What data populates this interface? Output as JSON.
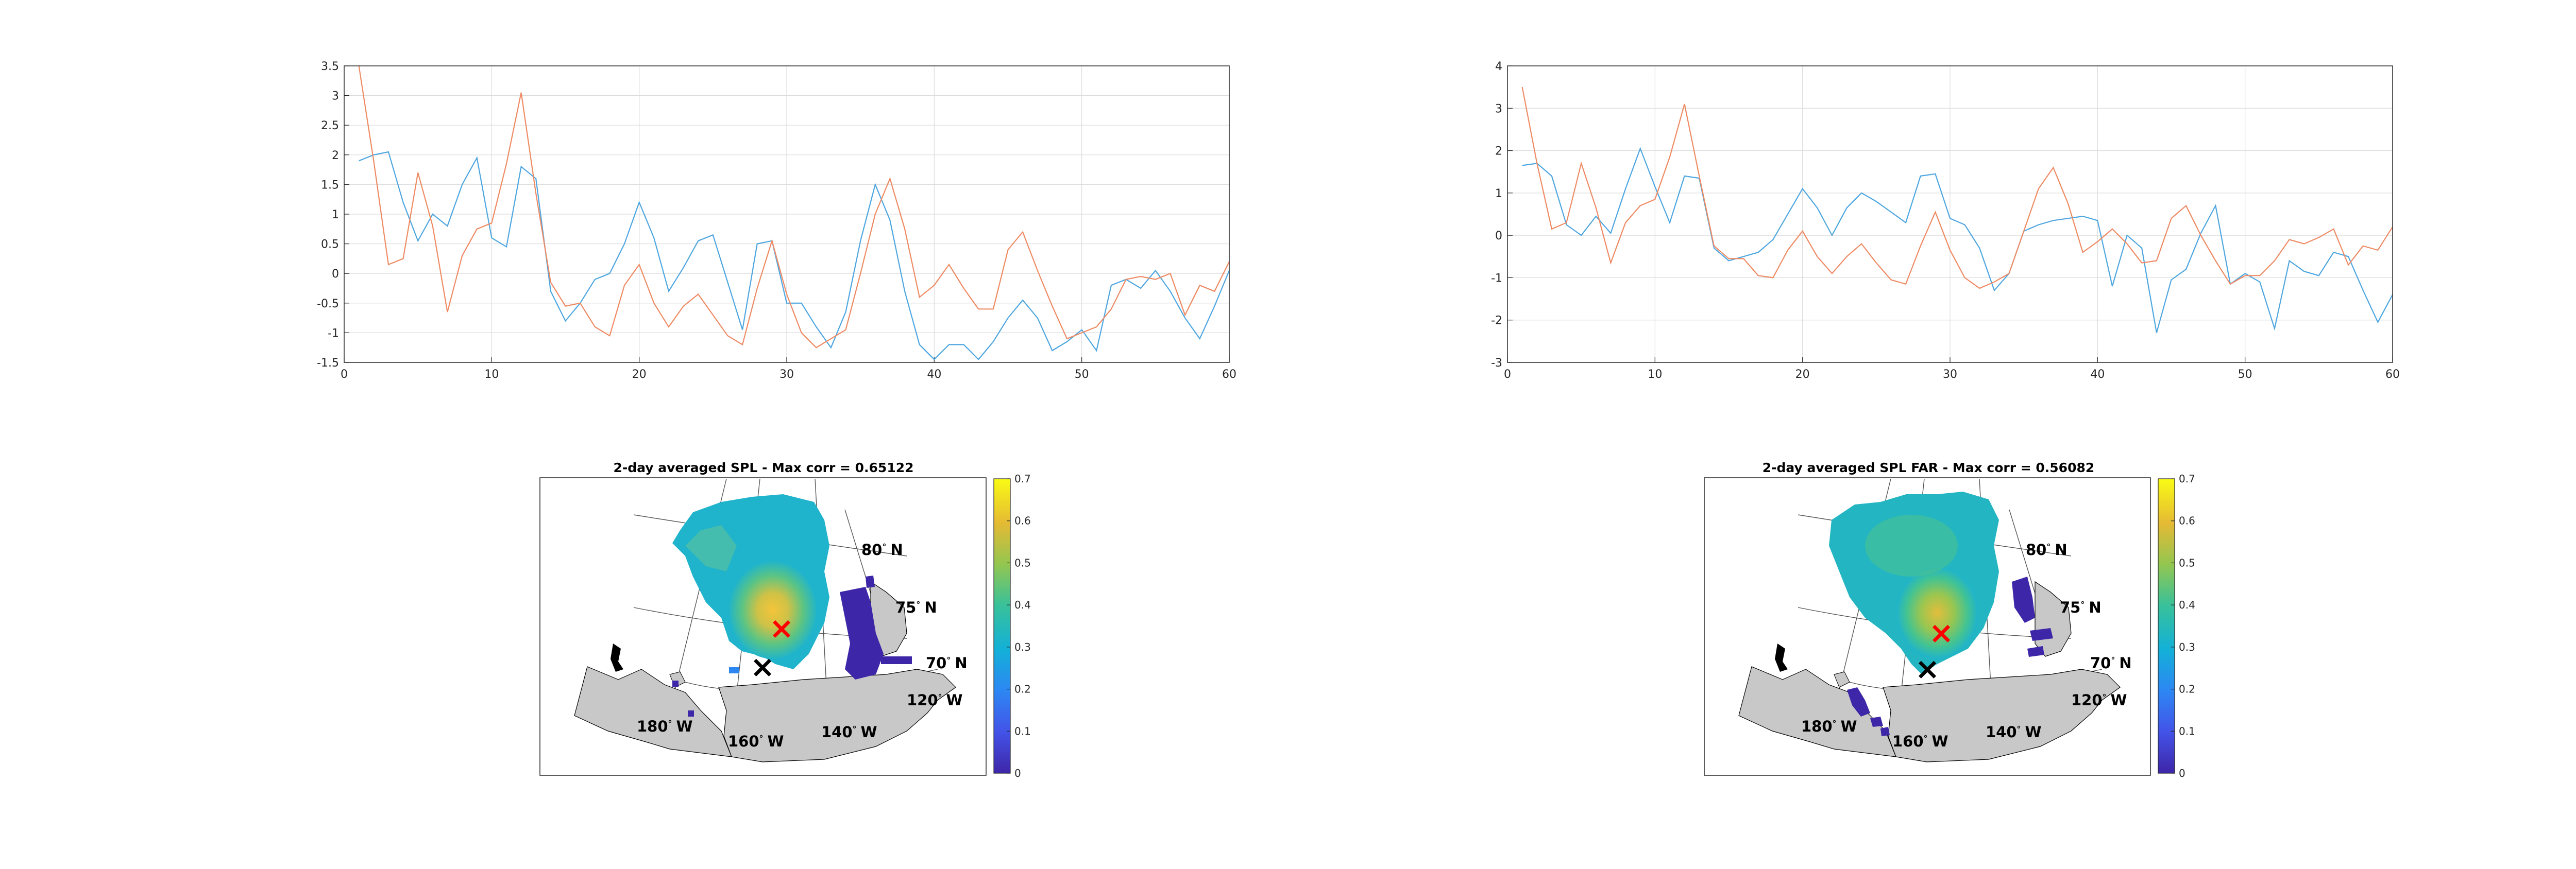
{
  "chart_data": [
    {
      "type": "line",
      "xlim": [
        0,
        60
      ],
      "ylim": [
        -1.5,
        3.5
      ],
      "xticks": [
        "0",
        "10",
        "20",
        "30",
        "40",
        "50",
        "60"
      ],
      "yticks": [
        "-1.5",
        "-1",
        "-0.5",
        "0",
        "0.5",
        "1",
        "1.5",
        "2",
        "2.5",
        "3",
        "3.5"
      ],
      "grid": true,
      "series": [
        {
          "color": "#0072BD",
          "x": [
            1,
            2,
            3,
            4,
            5,
            6,
            7,
            8,
            9,
            10,
            11,
            12,
            13,
            14,
            15,
            16,
            17,
            18,
            19,
            20,
            21,
            22,
            23,
            24,
            25,
            26,
            27,
            28,
            29,
            30,
            31,
            32,
            33,
            34,
            35,
            36,
            37,
            38,
            39,
            40,
            41,
            42,
            43,
            44,
            45,
            46,
            47,
            48,
            49,
            50,
            51,
            52,
            53,
            54,
            55,
            56,
            57,
            58,
            59,
            60
          ],
          "values": [
            1.9,
            2.0,
            2.05,
            1.2,
            0.55,
            1.0,
            0.8,
            1.5,
            1.95,
            0.6,
            0.45,
            1.8,
            1.6,
            -0.3,
            -0.8,
            -0.5,
            -0.1,
            0.0,
            0.5,
            1.2,
            0.6,
            -0.3,
            0.1,
            0.55,
            0.65,
            -0.15,
            -0.95,
            0.5,
            0.55,
            -0.5,
            -0.5,
            -0.9,
            -1.25,
            -0.65,
            0.55,
            1.5,
            0.9,
            -0.3,
            -1.2,
            -1.45,
            -1.2,
            -1.2,
            -1.45,
            -1.15,
            -0.75,
            -0.45,
            -0.75,
            -1.3,
            -1.15,
            -0.95,
            -1.3,
            -0.2,
            -0.1,
            -0.25,
            0.05,
            -0.3,
            -0.75,
            -1.1,
            -0.55,
            0.05
          ]
        },
        {
          "color": "#D95319",
          "x": [
            1,
            2,
            3,
            4,
            5,
            6,
            7,
            8,
            9,
            10,
            11,
            12,
            13,
            14,
            15,
            16,
            17,
            18,
            19,
            20,
            21,
            22,
            23,
            24,
            25,
            26,
            27,
            28,
            29,
            30,
            31,
            32,
            33,
            34,
            35,
            36,
            37,
            38,
            39,
            40,
            41,
            42,
            43,
            44,
            45,
            46,
            47,
            48,
            49,
            50,
            51,
            52,
            53,
            54,
            55,
            56,
            57,
            58,
            59,
            60
          ],
          "values": [
            3.5,
            1.9,
            0.15,
            0.25,
            1.7,
            0.8,
            -0.65,
            0.3,
            0.75,
            0.85,
            1.85,
            3.05,
            1.35,
            -0.15,
            -0.55,
            -0.5,
            -0.9,
            -1.05,
            -0.2,
            0.15,
            -0.5,
            -0.9,
            -0.55,
            -0.35,
            -0.7,
            -1.05,
            -1.2,
            -0.25,
            0.55,
            -0.35,
            -1.0,
            -1.25,
            -1.1,
            -0.95,
            0.0,
            1.0,
            1.6,
            0.75,
            -0.4,
            -0.2,
            0.15,
            -0.25,
            -0.6,
            -0.6,
            0.4,
            0.7,
            0.05,
            -0.55,
            -1.1,
            -1.0,
            -0.9,
            -0.6,
            -0.1,
            -0.05,
            -0.1,
            0.0,
            -0.7,
            -0.2,
            -0.3,
            0.2
          ]
        }
      ]
    },
    {
      "type": "line",
      "xlim": [
        0,
        60
      ],
      "ylim": [
        -3,
        4
      ],
      "xticks": [
        "0",
        "10",
        "20",
        "30",
        "40",
        "50",
        "60"
      ],
      "yticks": [
        "-3",
        "-2",
        "-1",
        "0",
        "1",
        "2",
        "3",
        "4"
      ],
      "grid": true,
      "series": [
        {
          "color": "#0072BD",
          "x": [
            1,
            2,
            3,
            4,
            5,
            6,
            7,
            8,
            9,
            10,
            11,
            12,
            13,
            14,
            15,
            16,
            17,
            18,
            19,
            20,
            21,
            22,
            23,
            24,
            25,
            26,
            27,
            28,
            29,
            30,
            31,
            32,
            33,
            34,
            35,
            36,
            37,
            38,
            39,
            40,
            41,
            42,
            43,
            44,
            45,
            46,
            47,
            48,
            49,
            50,
            51,
            52,
            53,
            54,
            55,
            56,
            57,
            58,
            59,
            60
          ],
          "values": [
            1.65,
            1.7,
            1.4,
            0.25,
            0.0,
            0.45,
            0.05,
            1.1,
            2.05,
            1.15,
            0.3,
            1.4,
            1.35,
            -0.3,
            -0.6,
            -0.5,
            -0.4,
            -0.1,
            0.5,
            1.1,
            0.65,
            0.0,
            0.65,
            1.0,
            0.8,
            0.55,
            0.3,
            1.4,
            1.45,
            0.4,
            0.25,
            -0.3,
            -1.3,
            -0.9,
            0.1,
            0.25,
            0.35,
            0.4,
            0.45,
            0.35,
            -1.2,
            0.0,
            -0.3,
            -2.3,
            -1.05,
            -0.8,
            0.05,
            0.7,
            -1.15,
            -0.9,
            -1.1,
            -2.2,
            -0.6,
            -0.85,
            -0.95,
            -0.4,
            -0.5,
            -1.3,
            -2.05,
            -1.4
          ]
        },
        {
          "color": "#D95319",
          "x": [
            1,
            2,
            3,
            4,
            5,
            6,
            7,
            8,
            9,
            10,
            11,
            12,
            13,
            14,
            15,
            16,
            17,
            18,
            19,
            20,
            21,
            22,
            23,
            24,
            25,
            26,
            27,
            28,
            29,
            30,
            31,
            32,
            33,
            34,
            35,
            36,
            37,
            38,
            39,
            40,
            41,
            42,
            43,
            44,
            45,
            46,
            47,
            48,
            49,
            50,
            51,
            52,
            53,
            54,
            55,
            56,
            57,
            58,
            59,
            60
          ],
          "values": [
            3.5,
            1.7,
            0.15,
            0.3,
            1.7,
            0.65,
            -0.65,
            0.3,
            0.7,
            0.85,
            1.85,
            3.1,
            1.4,
            -0.25,
            -0.55,
            -0.55,
            -0.95,
            -1.0,
            -0.35,
            0.1,
            -0.5,
            -0.9,
            -0.5,
            -0.2,
            -0.65,
            -1.05,
            -1.15,
            -0.25,
            0.55,
            -0.35,
            -1.0,
            -1.25,
            -1.1,
            -0.9,
            0.1,
            1.1,
            1.6,
            0.75,
            -0.4,
            -0.15,
            0.15,
            -0.2,
            -0.65,
            -0.6,
            0.4,
            0.7,
            0.0,
            -0.6,
            -1.15,
            -0.95,
            -0.95,
            -0.6,
            -0.1,
            -0.2,
            -0.05,
            0.15,
            -0.7,
            -0.25,
            -0.35,
            0.2
          ]
        }
      ]
    },
    {
      "type": "heatmap",
      "title": "2-day averaged SPL - Max corr = 0.65122",
      "colorbar": {
        "min": 0,
        "max": 0.7,
        "ticks": [
          "0",
          "0.1",
          "0.2",
          "0.3",
          "0.4",
          "0.5",
          "0.6",
          "0.7"
        ]
      },
      "latitude_labels": [
        {
          "deg": "80",
          "hem": "N"
        },
        {
          "deg": "75",
          "hem": "N"
        },
        {
          "deg": "70",
          "hem": "N"
        }
      ],
      "longitude_labels": [
        {
          "deg": "180",
          "hem": "W"
        },
        {
          "deg": "160",
          "hem": "W"
        },
        {
          "deg": "140",
          "hem": "W"
        },
        {
          "deg": "120",
          "hem": "W"
        }
      ],
      "markers": [
        {
          "symbol": "×",
          "color": "#ff0000"
        },
        {
          "symbol": "×",
          "color": "#000000"
        }
      ]
    },
    {
      "type": "heatmap",
      "title": "2-day averaged SPL FAR - Max corr = 0.56082",
      "colorbar": {
        "min": 0,
        "max": 0.7,
        "ticks": [
          "0",
          "0.1",
          "0.2",
          "0.3",
          "0.4",
          "0.5",
          "0.6",
          "0.7"
        ]
      },
      "latitude_labels": [
        {
          "deg": "80",
          "hem": "N"
        },
        {
          "deg": "75",
          "hem": "N"
        },
        {
          "deg": "70",
          "hem": "N"
        }
      ],
      "longitude_labels": [
        {
          "deg": "180",
          "hem": "W"
        },
        {
          "deg": "160",
          "hem": "W"
        },
        {
          "deg": "140",
          "hem": "W"
        },
        {
          "deg": "120",
          "hem": "W"
        }
      ],
      "markers": [
        {
          "symbol": "×",
          "color": "#ff0000"
        },
        {
          "symbol": "×",
          "color": "#000000"
        }
      ]
    }
  ]
}
